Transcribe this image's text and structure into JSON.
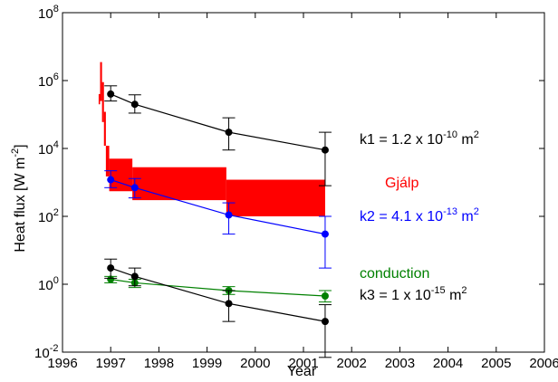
{
  "chart_data": {
    "type": "scatter",
    "xlabel": "Year",
    "ylabel": "Heat flux [W m",
    "ylabel_sup": "-2",
    "ylabel_close": "]",
    "xlim": [
      1996,
      2006
    ],
    "ylim": [
      0.01,
      100000000
    ],
    "yscale": "log",
    "grid": false,
    "x_ticks": [
      "1996",
      "1997",
      "1998",
      "1999",
      "2000",
      "2001",
      "2002",
      "2003",
      "2004",
      "2005",
      "2006"
    ],
    "y_ticks": [
      {
        "base": "10",
        "exp": "-2",
        "value": 0.01
      },
      {
        "base": "10",
        "exp": "0",
        "value": 1
      },
      {
        "base": "10",
        "exp": "2",
        "value": 100
      },
      {
        "base": "10",
        "exp": "4",
        "value": 10000
      },
      {
        "base": "10",
        "exp": "6",
        "value": 1000000
      },
      {
        "base": "10",
        "exp": "8",
        "value": 100000000
      }
    ],
    "series": [
      {
        "key": "k1",
        "color": "#000000",
        "x": [
          1997.0,
          1997.5,
          1999.45,
          2001.45
        ],
        "y": [
          400000,
          200000,
          30000,
          9000
        ],
        "err_low": [
          250000,
          110000,
          9000,
          800
        ],
        "err_high": [
          700000,
          380000,
          80000,
          30000
        ]
      },
      {
        "key": "k2",
        "color": "#0000ff",
        "x": [
          1997.0,
          1997.5,
          1999.45,
          2001.45
        ],
        "y": [
          1200,
          700,
          110,
          30
        ],
        "err_low": [
          700,
          350,
          30,
          3
        ],
        "err_high": [
          2200,
          1300,
          250,
          100
        ]
      },
      {
        "key": "conduction",
        "color": "#008000",
        "x": [
          1997.0,
          1997.5,
          1999.45,
          2001.45
        ],
        "y": [
          1.4,
          1.1,
          0.65,
          0.45
        ],
        "err_low": [
          1.1,
          0.8,
          0.5,
          0.3
        ],
        "err_high": [
          1.7,
          1.4,
          0.85,
          0.65
        ]
      },
      {
        "key": "k3",
        "color": "#000000",
        "x": [
          1997.0,
          1997.5,
          1999.45,
          2001.45
        ],
        "y": [
          3,
          1.7,
          0.27,
          0.08
        ],
        "err_low": [
          1.5,
          0.9,
          0.08,
          0.007
        ],
        "err_high": [
          5.5,
          3,
          0.65,
          0.25
        ]
      }
    ],
    "gjalp_band": {
      "color": "#ff0000",
      "segments": [
        {
          "x0": 1996.75,
          "x1": 1996.78,
          "low": 200000,
          "high": 400000
        },
        {
          "x0": 1996.78,
          "x1": 1996.82,
          "low": 250000,
          "high": 3500000
        },
        {
          "x0": 1996.82,
          "x1": 1996.86,
          "low": 60000,
          "high": 900000
        },
        {
          "x0": 1996.86,
          "x1": 1996.9,
          "low": 12000,
          "high": 120000
        },
        {
          "x0": 1996.9,
          "x1": 1996.97,
          "low": 1500,
          "high": 12000
        },
        {
          "x0": 1996.97,
          "x1": 1997.45,
          "low": 550,
          "high": 5000
        },
        {
          "x0": 1997.45,
          "x1": 1999.4,
          "low": 300,
          "high": 2800
        },
        {
          "x0": 1999.4,
          "x1": 2001.45,
          "low": 100,
          "high": 1200
        }
      ]
    },
    "annotations": {
      "k1": {
        "text": "k1 = 1.2 x 10",
        "sup": "-10",
        "tail": " m",
        "sup2": "2",
        "color": "#000000"
      },
      "gjalp": {
        "text": "Gjálp",
        "color": "#ff0000"
      },
      "k2": {
        "text": "k2 = 4.1 x 10",
        "sup": "-13",
        "tail": " m",
        "sup2": "2",
        "color": "#0000ff"
      },
      "conduction": {
        "text": "conduction",
        "color": "#008000"
      },
      "k3": {
        "text": "k3 = 1 x 10",
        "sup": "-15",
        "tail": " m",
        "sup2": "2",
        "color": "#000000"
      }
    }
  }
}
